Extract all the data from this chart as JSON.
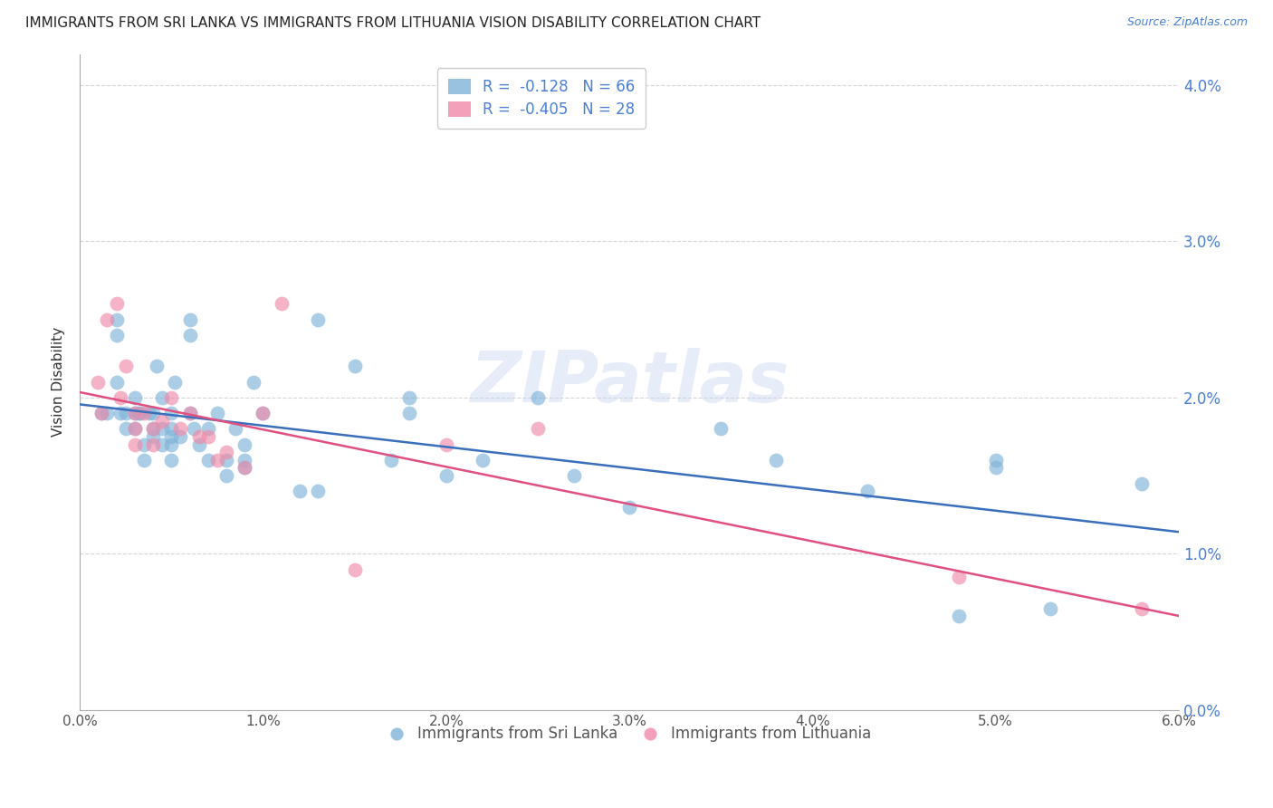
{
  "title": "IMMIGRANTS FROM SRI LANKA VS IMMIGRANTS FROM LITHUANIA VISION DISABILITY CORRELATION CHART",
  "source": "Source: ZipAtlas.com",
  "ylabel": "Vision Disability",
  "xlim": [
    0.0,
    0.06
  ],
  "ylim": [
    0.0,
    0.042
  ],
  "yticks": [
    0.0,
    0.01,
    0.02,
    0.03,
    0.04
  ],
  "xticks": [
    0.0,
    0.01,
    0.02,
    0.03,
    0.04,
    0.05,
    0.06
  ],
  "sri_lanka_color": "#7eb3d8",
  "lithuania_color": "#f08aaa",
  "sri_lanka_line_color": "#3a6fbc",
  "lithuania_line_color": "#e05080",
  "background_color": "#ffffff",
  "grid_color": "#cccccc",
  "watermark": "ZIPatlas",
  "sri_lanka_R": "-0.128",
  "sri_lanka_N": 66,
  "lithuania_R": "-0.405",
  "lithuania_N": 28,
  "sri_lanka_x": [
    0.0012,
    0.0015,
    0.002,
    0.002,
    0.002,
    0.0022,
    0.0025,
    0.0025,
    0.003,
    0.003,
    0.003,
    0.0032,
    0.0033,
    0.0035,
    0.0035,
    0.0038,
    0.004,
    0.004,
    0.004,
    0.0042,
    0.0045,
    0.0045,
    0.0045,
    0.005,
    0.005,
    0.005,
    0.005,
    0.005,
    0.0052,
    0.0055,
    0.006,
    0.006,
    0.006,
    0.0062,
    0.0065,
    0.007,
    0.007,
    0.0075,
    0.008,
    0.008,
    0.0085,
    0.009,
    0.009,
    0.009,
    0.0095,
    0.01,
    0.012,
    0.013,
    0.013,
    0.015,
    0.017,
    0.018,
    0.018,
    0.02,
    0.022,
    0.025,
    0.027,
    0.03,
    0.035,
    0.038,
    0.043,
    0.048,
    0.05,
    0.05,
    0.053,
    0.058
  ],
  "sri_lanka_y": [
    0.019,
    0.019,
    0.025,
    0.024,
    0.021,
    0.019,
    0.019,
    0.018,
    0.02,
    0.019,
    0.018,
    0.019,
    0.019,
    0.017,
    0.016,
    0.019,
    0.019,
    0.018,
    0.0175,
    0.022,
    0.02,
    0.018,
    0.017,
    0.019,
    0.018,
    0.0175,
    0.017,
    0.016,
    0.021,
    0.0175,
    0.025,
    0.024,
    0.019,
    0.018,
    0.017,
    0.018,
    0.016,
    0.019,
    0.016,
    0.015,
    0.018,
    0.017,
    0.016,
    0.0155,
    0.021,
    0.019,
    0.014,
    0.014,
    0.025,
    0.022,
    0.016,
    0.019,
    0.02,
    0.015,
    0.016,
    0.02,
    0.015,
    0.013,
    0.018,
    0.016,
    0.014,
    0.006,
    0.016,
    0.0155,
    0.0065,
    0.0145
  ],
  "lithuania_x": [
    0.001,
    0.0012,
    0.0015,
    0.002,
    0.0022,
    0.0025,
    0.003,
    0.003,
    0.003,
    0.0035,
    0.004,
    0.004,
    0.0045,
    0.005,
    0.0055,
    0.006,
    0.0065,
    0.007,
    0.0075,
    0.008,
    0.009,
    0.01,
    0.011,
    0.015,
    0.02,
    0.025,
    0.048,
    0.058
  ],
  "lithuania_y": [
    0.021,
    0.019,
    0.025,
    0.026,
    0.02,
    0.022,
    0.019,
    0.018,
    0.017,
    0.019,
    0.018,
    0.017,
    0.0185,
    0.02,
    0.018,
    0.019,
    0.0175,
    0.0175,
    0.016,
    0.0165,
    0.0155,
    0.019,
    0.026,
    0.009,
    0.017,
    0.018,
    0.0085,
    0.0065
  ]
}
